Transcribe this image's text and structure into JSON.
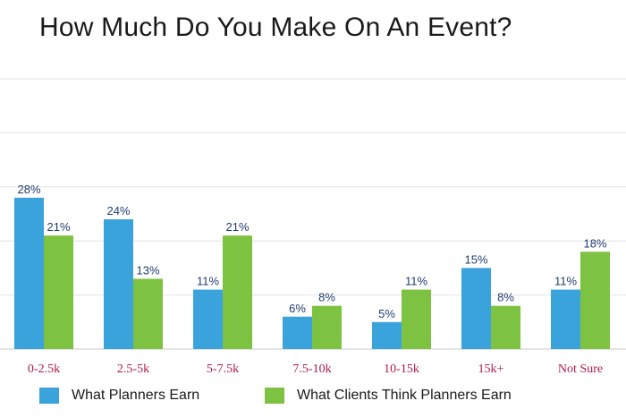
{
  "chart_data": {
    "type": "bar",
    "title": "How Much Do You Make On An Event?",
    "categories": [
      "0-2.5k",
      "2.5-5k",
      "5-7.5k",
      "7.5-10k",
      "10-15k",
      "15k+",
      "Not Sure"
    ],
    "series": [
      {
        "name": "What Planners Earn",
        "values": [
          28,
          24,
          11,
          6,
          5,
          15,
          11
        ],
        "labels": [
          "28%",
          "24%",
          "11%",
          "6%",
          "5%",
          "15%",
          "11%"
        ],
        "color": "#3aa3dc"
      },
      {
        "name": "What Clients Think Planners Earn",
        "values": [
          21,
          13,
          21,
          8,
          11,
          8,
          18
        ],
        "labels": [
          "21%",
          "13%",
          "21%",
          "8%",
          "11%",
          "8%",
          "18%"
        ],
        "color": "#7ec242"
      }
    ],
    "ylim": [
      0,
      50
    ],
    "grid": true,
    "legend_position": "bottom",
    "category_label_color": "#b0184f"
  }
}
